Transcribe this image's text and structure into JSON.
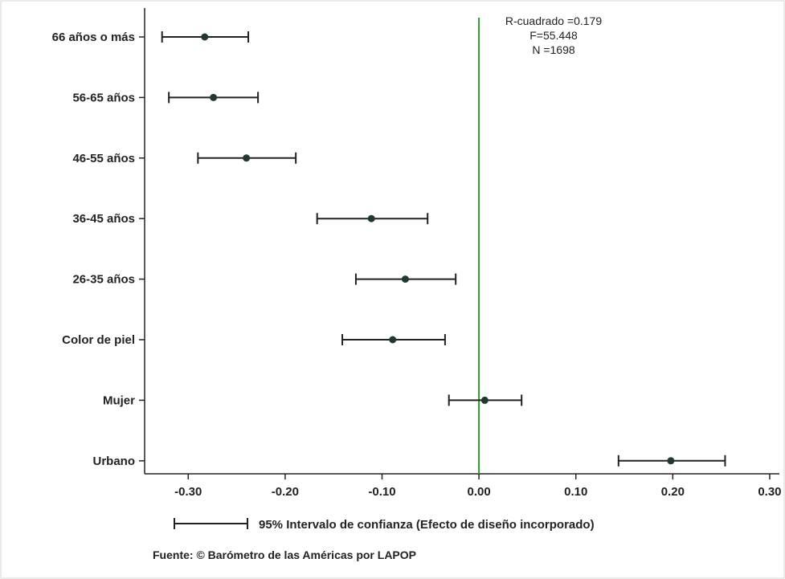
{
  "chart_data": {
    "type": "scatter",
    "subtype": "coefficient-plot-with-95ci",
    "categories": [
      "66 años o más",
      "56-65 años",
      "46-55 años",
      "36-45 años",
      "26-35 años",
      "Color de piel",
      "Mujer",
      "Urbano"
    ],
    "estimate": [
      -0.283,
      -0.274,
      -0.24,
      -0.111,
      -0.076,
      -0.089,
      0.006,
      0.198
    ],
    "ci_low": [
      -0.327,
      -0.32,
      -0.29,
      -0.167,
      -0.127,
      -0.141,
      -0.031,
      0.144
    ],
    "ci_high": [
      -0.238,
      -0.228,
      -0.189,
      -0.053,
      -0.024,
      -0.035,
      0.044,
      0.254
    ],
    "xlim": [
      -0.345,
      0.31
    ],
    "xticks": [
      "-0.30",
      "-0.20",
      "-0.10",
      "0.00",
      "0.10",
      "0.20",
      "0.30"
    ],
    "xtick_values": [
      -0.3,
      -0.2,
      -0.1,
      0.0,
      0.1,
      0.2,
      0.3
    ],
    "reference_line": 0,
    "reference_line_color": "#2a9a2a",
    "marker_color": "#1f3a30",
    "stats": [
      "R-cuadrado =0.179",
      "F=55.448",
      "N =1698"
    ],
    "legend": "95% Intervalo de confianza (Efecto de diseño incorporado)",
    "source": "Fuente: © Barómetro de las Américas por LAPOP",
    "grid": false
  }
}
